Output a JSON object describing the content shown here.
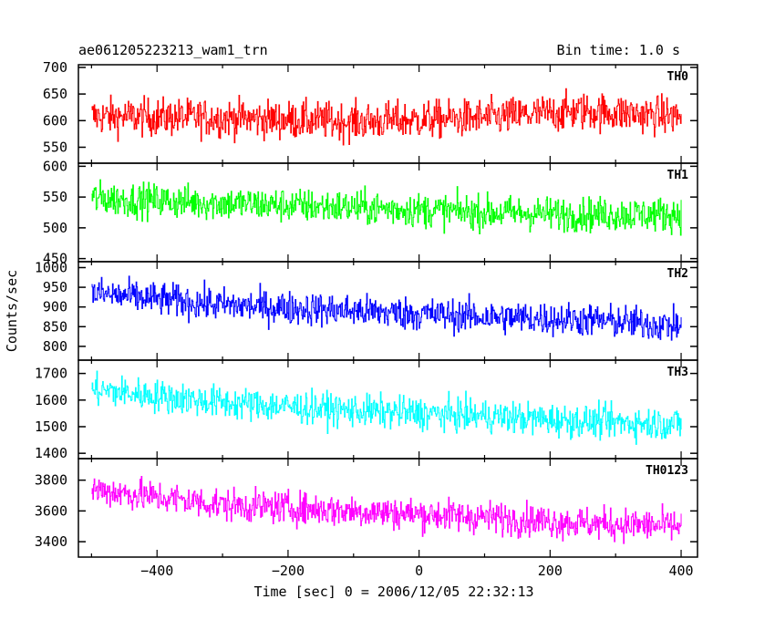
{
  "chart_data": {
    "type": "line",
    "title": "ae061205223213_wam1_trn",
    "bin_time": "Bin time: 1.0 s",
    "xlabel": "Time [sec] 0 = 2006/12/05 22:32:13",
    "ylabel": "Counts/sec",
    "xlim": [
      -520,
      425
    ],
    "xticks": [
      -400,
      -200,
      0,
      200,
      400
    ],
    "data_xrange": [
      -500,
      400
    ],
    "step": 1.0,
    "grid": false,
    "panels": [
      {
        "name": "TH0",
        "color": "#ff0000",
        "ylim": [
          520,
          705
        ],
        "yticks": [
          550,
          600,
          650,
          700
        ],
        "trend": [
          [
            -500,
            608
          ],
          [
            -300,
            605
          ],
          [
            -100,
            598
          ],
          [
            100,
            605
          ],
          [
            250,
            618
          ],
          [
            400,
            608
          ]
        ],
        "noise": 32
      },
      {
        "name": "TH1",
        "color": "#00ff00",
        "ylim": [
          445,
          605
        ],
        "yticks": [
          450,
          500,
          550,
          600
        ],
        "trend": [
          [
            -500,
            548
          ],
          [
            -300,
            540
          ],
          [
            -100,
            533
          ],
          [
            100,
            525
          ],
          [
            250,
            522
          ],
          [
            400,
            522
          ]
        ],
        "noise": 25
      },
      {
        "name": "TH2",
        "color": "#0000ff",
        "ylim": [
          765,
          1015
        ],
        "yticks": [
          800,
          850,
          900,
          950,
          1000
        ],
        "trend": [
          [
            -500,
            935
          ],
          [
            -300,
            905
          ],
          [
            -100,
            890
          ],
          [
            100,
            875
          ],
          [
            250,
            868
          ],
          [
            400,
            852
          ]
        ],
        "noise": 38
      },
      {
        "name": "TH3",
        "color": "#00ffff",
        "ylim": [
          1380,
          1750
        ],
        "yticks": [
          1400,
          1500,
          1600,
          1700
        ],
        "trend": [
          [
            -500,
            1640
          ],
          [
            -300,
            1590
          ],
          [
            -100,
            1560
          ],
          [
            100,
            1540
          ],
          [
            250,
            1520
          ],
          [
            400,
            1510
          ]
        ],
        "noise": 55
      },
      {
        "name": "TH0123",
        "color": "#ff00ff",
        "ylim": [
          3300,
          3940
        ],
        "yticks": [
          3400,
          3600,
          3800
        ],
        "trend": [
          [
            -500,
            3740
          ],
          [
            -300,
            3640
          ],
          [
            -100,
            3600
          ],
          [
            100,
            3560
          ],
          [
            250,
            3520
          ],
          [
            400,
            3500
          ]
        ],
        "noise": 95
      }
    ]
  }
}
